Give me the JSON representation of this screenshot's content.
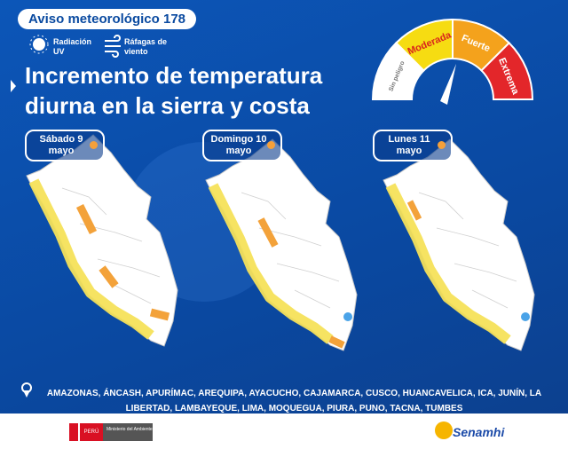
{
  "header": {
    "badge": "Aviso meteorológico 178",
    "icons": [
      "Radiación UV",
      "Ráfagas de viento"
    ],
    "title_lines": [
      "Incremento de temperatura",
      "diurna en la sierra y costa"
    ]
  },
  "gauge": {
    "levels": [
      "Sin peligro",
      "Moderada",
      "Fuerte",
      "Extrema"
    ]
  },
  "days": [
    {
      "day": "Sábado 9",
      "month": "mayo"
    },
    {
      "day": "Domingo 10",
      "month": "mayo"
    },
    {
      "day": "Lunes 11",
      "month": "mayo"
    }
  ],
  "regions": "AMAZONAS, ÁNCASH, APURÍMAC, AREQUIPA, AYACUCHO, CAJAMARCA, CUSCO, HUANCAVELICA, ICA, JUNÍN, LA LIBERTAD, LAMBAYEQUE, LIMA, MOQUEGUA, PIURA, PUNO, TACNA, TUMBES",
  "footer": {
    "country": "PERÚ",
    "ministry": "Ministerio del Ambiente",
    "brand": "Senamhi"
  }
}
